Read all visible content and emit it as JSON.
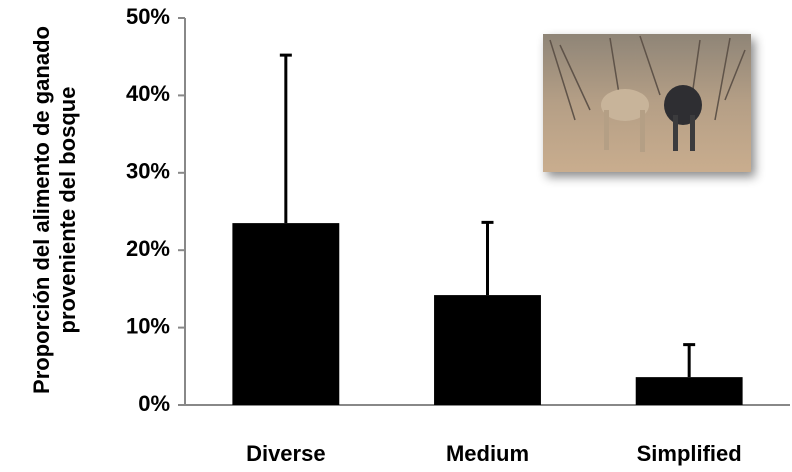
{
  "chart_data": {
    "type": "bar",
    "ylabel": "Proporción del alimento de ganado proveniente del bosque",
    "categories": [
      "Diverse",
      "Medium",
      "Simplified"
    ],
    "values": [
      23.5,
      14.2,
      3.6
    ],
    "errors": [
      21.7,
      9.4,
      4.2
    ],
    "color": "#000000",
    "ylim": [
      0,
      50
    ],
    "yticks": [
      {
        "value": 0,
        "label": "0%"
      },
      {
        "value": 10,
        "label": "10%"
      },
      {
        "value": 20,
        "label": "20%"
      },
      {
        "value": 30,
        "label": "30%"
      },
      {
        "value": 40,
        "label": "40%"
      },
      {
        "value": 50,
        "label": "50%"
      }
    ],
    "grid": false
  }
}
